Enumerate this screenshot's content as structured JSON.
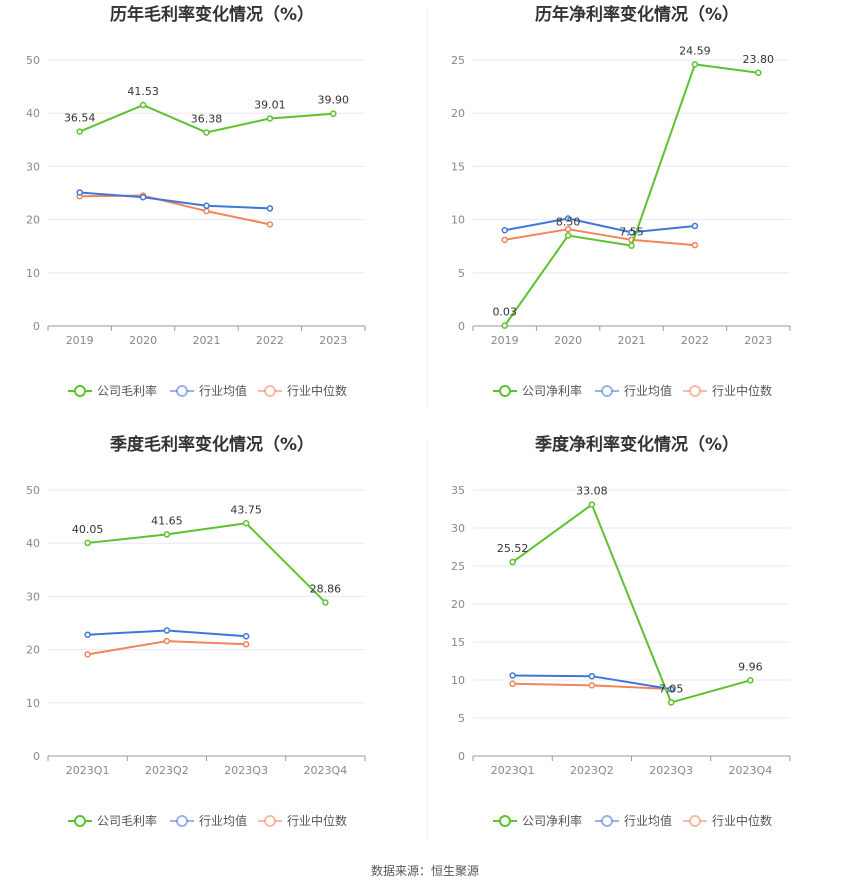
{
  "colors": {
    "company": "#5cc22d",
    "industry_avg": "#3f76db",
    "industry_median": "#f2845a",
    "grid": "#e8e8f0",
    "axis": "#999999"
  },
  "chart_data": [
    {
      "type": "line",
      "title": "历年毛利率变化情况（%）",
      "categories": [
        "2019",
        "2020",
        "2021",
        "2022",
        "2023"
      ],
      "ylim": [
        0,
        50
      ],
      "yticks": [
        0,
        10,
        20,
        30,
        40,
        50
      ],
      "grid": true,
      "legend_position": "bottom",
      "series": [
        {
          "name": "公司毛利率",
          "values": [
            36.54,
            41.53,
            36.38,
            39.01,
            39.9
          ],
          "labels": [
            "36.54",
            "41.53",
            "36.38",
            "39.01",
            "39.90"
          ]
        },
        {
          "name": "行业均值",
          "values": [
            25.1,
            24.2,
            22.6,
            22.1,
            null
          ]
        },
        {
          "name": "行业中位数",
          "values": [
            24.4,
            24.5,
            21.6,
            19.1,
            null
          ]
        }
      ]
    },
    {
      "type": "line",
      "title": "历年净利率变化情况（%）",
      "categories": [
        "2019",
        "2020",
        "2021",
        "2022",
        "2023"
      ],
      "ylim": [
        0,
        25
      ],
      "yticks": [
        0,
        5,
        10,
        15,
        20,
        25
      ],
      "grid": true,
      "legend_position": "bottom",
      "series": [
        {
          "name": "公司净利率",
          "values": [
            0.03,
            8.5,
            7.55,
            24.59,
            23.8
          ],
          "labels": [
            "0.03",
            "8.50",
            "7.55",
            "24.59",
            "23.80"
          ]
        },
        {
          "name": "行业均值",
          "values": [
            9.0,
            10.1,
            8.8,
            9.4,
            null
          ]
        },
        {
          "name": "行业中位数",
          "values": [
            8.1,
            9.1,
            8.1,
            7.6,
            null
          ]
        }
      ]
    },
    {
      "type": "line",
      "title": "季度毛利率变化情况（%）",
      "categories": [
        "2023Q1",
        "2023Q2",
        "2023Q3",
        "2023Q4"
      ],
      "ylim": [
        0,
        50
      ],
      "yticks": [
        0,
        10,
        20,
        30,
        40,
        50
      ],
      "grid": true,
      "legend_position": "bottom",
      "series": [
        {
          "name": "公司毛利率",
          "values": [
            40.05,
            41.65,
            43.75,
            28.86
          ],
          "labels": [
            "40.05",
            "41.65",
            "43.75",
            "28.86"
          ]
        },
        {
          "name": "行业均值",
          "values": [
            22.8,
            23.6,
            22.5,
            null
          ]
        },
        {
          "name": "行业中位数",
          "values": [
            19.1,
            21.6,
            21.0,
            null
          ]
        }
      ]
    },
    {
      "type": "line",
      "title": "季度净利率变化情况（%）",
      "categories": [
        "2023Q1",
        "2023Q2",
        "2023Q3",
        "2023Q4"
      ],
      "ylim": [
        0,
        35
      ],
      "yticks": [
        0,
        5,
        10,
        15,
        20,
        25,
        30,
        35
      ],
      "grid": true,
      "legend_position": "bottom",
      "series": [
        {
          "name": "公司净利率",
          "values": [
            25.52,
            33.08,
            7.05,
            9.96
          ],
          "labels": [
            "25.52",
            "33.08",
            "7.05",
            "9.96"
          ]
        },
        {
          "name": "行业均值",
          "values": [
            10.6,
            10.5,
            8.8,
            null
          ]
        },
        {
          "name": "行业中位数",
          "values": [
            9.5,
            9.3,
            8.8,
            null
          ]
        }
      ]
    }
  ],
  "footer": {
    "source": "数据来源：恒生聚源"
  }
}
